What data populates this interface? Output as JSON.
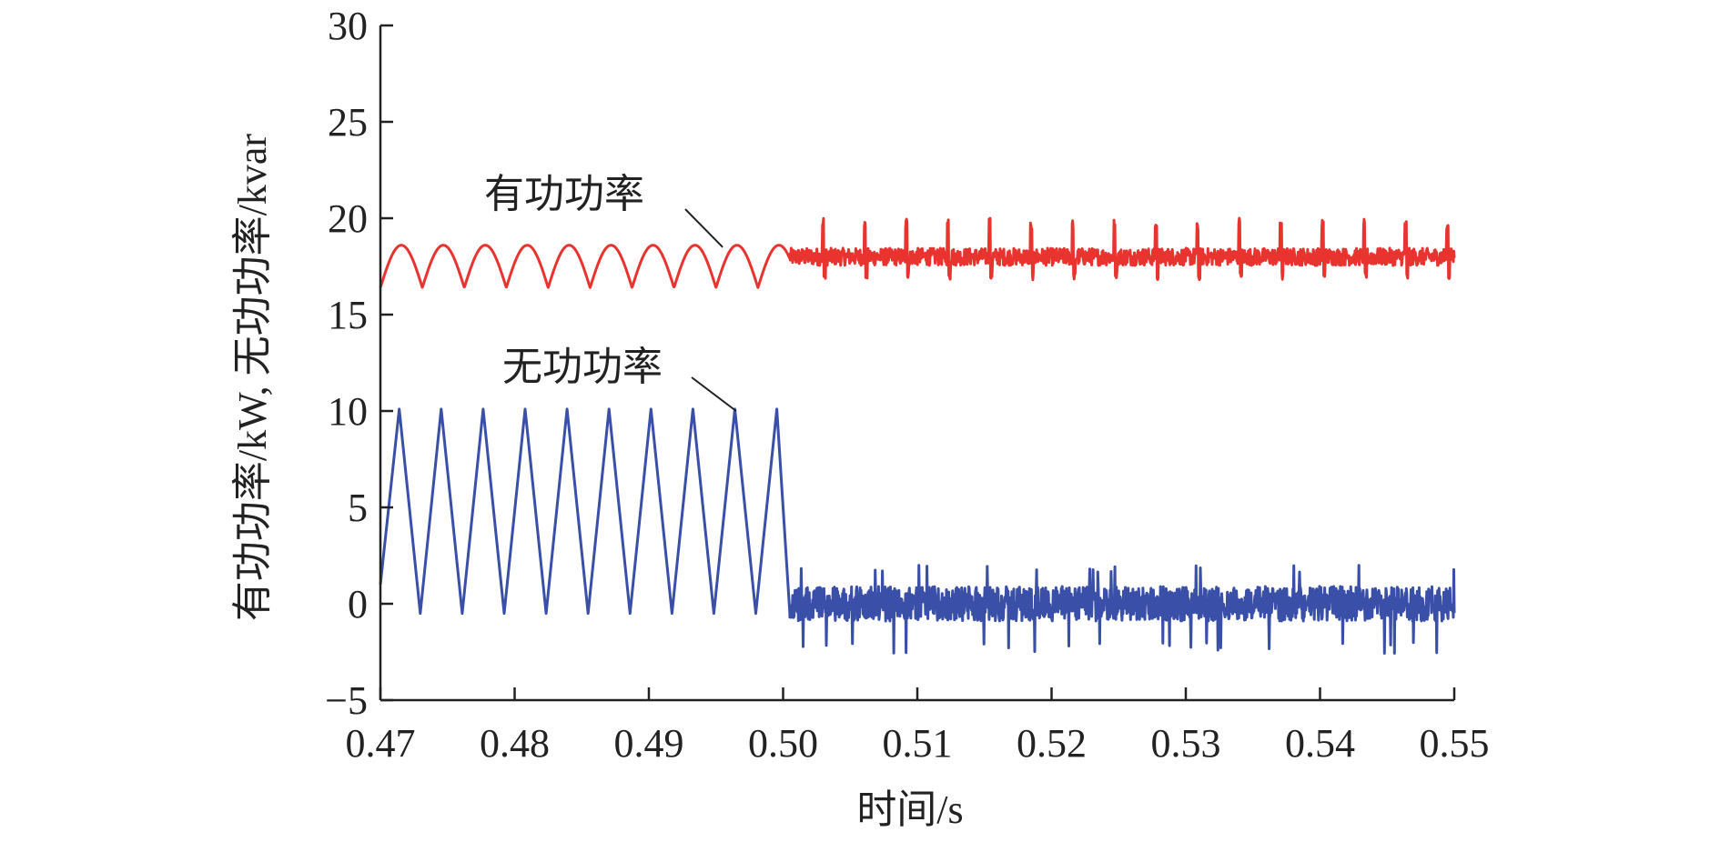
{
  "chart_data": {
    "type": "line",
    "title": "",
    "xlabel": "时间/s",
    "ylabel": "有功功率/kW, 无功功率/kvar",
    "xlim": [
      0.47,
      0.55
    ],
    "ylim": [
      -5,
      30
    ],
    "xticks": [
      "0.47",
      "0.48",
      "0.49",
      "0.50",
      "0.51",
      "0.52",
      "0.53",
      "0.54",
      "0.55"
    ],
    "yticks": [
      "−5",
      "0",
      "5",
      "10",
      "15",
      "20",
      "25",
      "30"
    ],
    "grid": false,
    "series": [
      {
        "name": "有功功率",
        "color": "#e8332f",
        "segments": [
          {
            "x_start": 0.47,
            "x_end": 0.5005,
            "shape": "rectified-ripple",
            "y_min": 16.4,
            "y_max": 18.6,
            "period_s": 0.003125
          },
          {
            "x_start": 0.5005,
            "x_end": 0.55,
            "shape": "noisy-spiky",
            "y_mean": 18.0,
            "noise": 0.45,
            "spike_up": 20.0,
            "spike_down": 16.8,
            "spike_period_s": 0.0031
          }
        ]
      },
      {
        "name": "无功功率",
        "color": "#3a4fa8",
        "segments": [
          {
            "x_start": 0.47,
            "x_end": 0.5005,
            "shape": "sawtooth",
            "y_min": -0.5,
            "y_max": 10.1,
            "period_s": 0.003125
          },
          {
            "x_start": 0.5005,
            "x_end": 0.55,
            "shape": "noisy",
            "y_mean": 0.0,
            "noise": 0.9,
            "range": [
              -2.6,
              2.0
            ]
          }
        ]
      }
    ],
    "annotations": [
      {
        "text": "有功功率",
        "series": "有功功率",
        "points_to": [
          0.4955,
          18.5
        ]
      },
      {
        "text": "无功功率",
        "series": "无功功率",
        "points_to": [
          0.4965,
          10.0
        ]
      }
    ]
  }
}
